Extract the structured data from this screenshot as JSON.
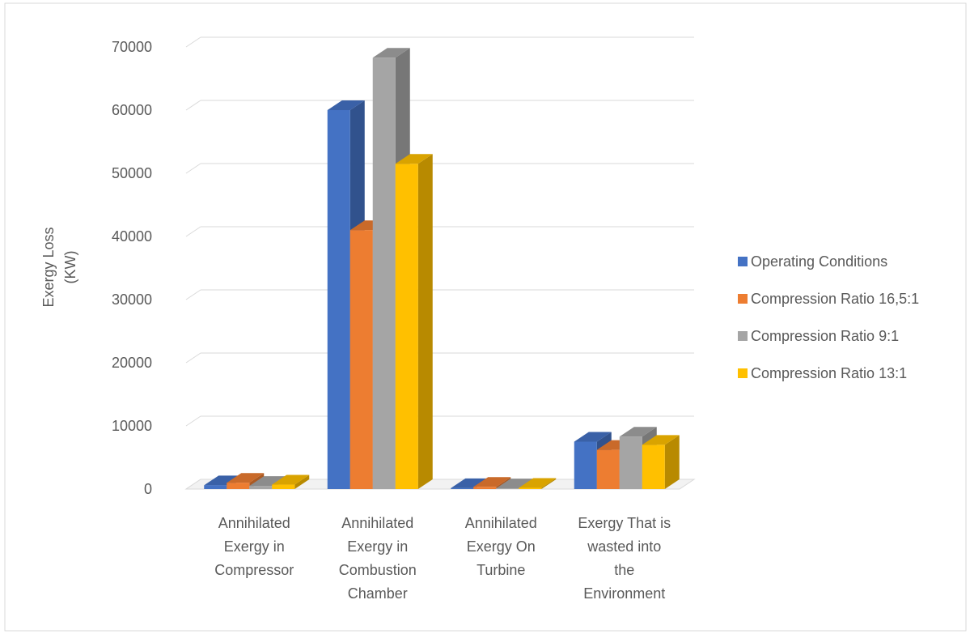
{
  "chart_data": {
    "type": "bar",
    "style": "3d-clustered-column",
    "title": "",
    "xlabel": "",
    "ylabel": "Exergy Loss\n(KW)",
    "ylabel_lines": [
      "Exergy Loss",
      "(KW)"
    ],
    "ylim": [
      0,
      70000
    ],
    "yticks": [
      "0",
      "10000",
      "20000",
      "30000",
      "40000",
      "50000",
      "60000",
      "70000"
    ],
    "ytick_values": [
      0,
      10000,
      20000,
      30000,
      40000,
      50000,
      60000,
      70000
    ],
    "grid": true,
    "legend_position": "right",
    "categories": [
      [
        "Annihilated",
        "Exergy in",
        "Compressor"
      ],
      [
        "Annihilated",
        "Exergy in",
        "Combustion",
        "Chamber"
      ],
      [
        "Annihilated",
        "Exergy On",
        "Turbine"
      ],
      [
        "Exergy That is",
        "wasted into",
        "the",
        "Environment"
      ]
    ],
    "series": [
      {
        "name": "Operating Conditions",
        "color": "#4472C4",
        "values": [
          600,
          60000,
          150,
          7500
        ]
      },
      {
        "name": "Compression Ratio 16,5:1",
        "color": "#ED7D31",
        "values": [
          1000,
          41000,
          350,
          6200
        ]
      },
      {
        "name": "Compression Ratio 9:1",
        "color": "#A5A5A5",
        "values": [
          500,
          68300,
          120,
          8300
        ]
      },
      {
        "name": "Compression Ratio 13:1",
        "color": "#FFC000",
        "values": [
          700,
          51500,
          200,
          7000
        ]
      }
    ]
  }
}
